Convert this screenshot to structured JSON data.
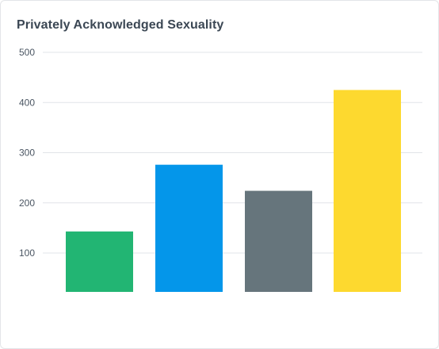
{
  "chart_data": {
    "type": "bar",
    "title": "Privately Acknowledged Sexuality",
    "categories": [
      "",
      "",
      "",
      ""
    ],
    "values": [
      143,
      276,
      224,
      425
    ],
    "colors": [
      "#22b573",
      "#0496ea",
      "#66757c",
      "#fdd92f"
    ],
    "xlabel": "",
    "ylabel": "",
    "ylim": [
      0,
      500
    ],
    "yticks": [
      100,
      200,
      300,
      400,
      500
    ],
    "grid": true,
    "legend": "none"
  }
}
